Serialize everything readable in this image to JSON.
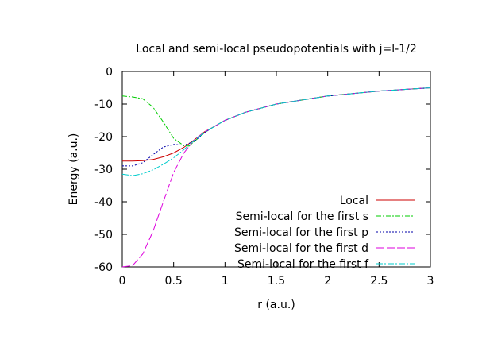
{
  "chart_data": {
    "type": "line",
    "title": "Local and semi-local pseudopotentials with j=l-1/2",
    "xlabel": "r (a.u.)",
    "ylabel": "Energy (a.u.)",
    "xlim": [
      0,
      3
    ],
    "ylim": [
      -60,
      0
    ],
    "xticks": [
      "0",
      "0.5",
      "1",
      "1.5",
      "2",
      "2.5",
      "3"
    ],
    "yticks": [
      "0",
      "-10",
      "-20",
      "-30",
      "-40",
      "-50",
      "-60"
    ],
    "grid": false,
    "legend_position": "bottom-right",
    "series": [
      {
        "name": "Local",
        "color": "#cc0000",
        "dash": "",
        "points": [
          [
            0,
            -27.5
          ],
          [
            0.1,
            -27.5
          ],
          [
            0.2,
            -27.4
          ],
          [
            0.3,
            -27.0
          ],
          [
            0.4,
            -26.2
          ],
          [
            0.5,
            -25.0
          ],
          [
            0.6,
            -23.3
          ],
          [
            0.7,
            -21.0
          ],
          [
            0.8,
            -18.5
          ],
          [
            0.9,
            -16.8
          ],
          [
            1.0,
            -15.0
          ],
          [
            1.2,
            -12.5
          ],
          [
            1.5,
            -10.0
          ],
          [
            2.0,
            -7.5
          ],
          [
            2.5,
            -6.0
          ],
          [
            3.0,
            -5.0
          ]
        ]
      },
      {
        "name": "Semi-local for the first s",
        "color": "#00cc00",
        "dash": "6,2,2,2",
        "points": [
          [
            0,
            -7.5
          ],
          [
            0.1,
            -7.8
          ],
          [
            0.2,
            -8.4
          ],
          [
            0.3,
            -11.0
          ],
          [
            0.4,
            -15.5
          ],
          [
            0.5,
            -20.5
          ],
          [
            0.6,
            -22.8
          ],
          [
            0.65,
            -22.9
          ],
          [
            0.7,
            -21.5
          ],
          [
            0.8,
            -18.8
          ],
          [
            0.9,
            -16.8
          ],
          [
            1.0,
            -15.0
          ],
          [
            1.2,
            -12.5
          ],
          [
            1.5,
            -10.0
          ],
          [
            2.0,
            -7.5
          ],
          [
            2.5,
            -6.0
          ],
          [
            3.0,
            -5.0
          ]
        ]
      },
      {
        "name": "Semi-local for the first p",
        "color": "#0000aa",
        "dash": "2,2",
        "points": [
          [
            0,
            -29.0
          ],
          [
            0.1,
            -29.0
          ],
          [
            0.2,
            -28.0
          ],
          [
            0.3,
            -25.5
          ],
          [
            0.4,
            -23.2
          ],
          [
            0.5,
            -22.4
          ],
          [
            0.6,
            -22.6
          ],
          [
            0.7,
            -21.5
          ],
          [
            0.8,
            -18.8
          ],
          [
            0.9,
            -16.8
          ],
          [
            1.0,
            -15.0
          ],
          [
            1.2,
            -12.5
          ],
          [
            1.5,
            -10.0
          ],
          [
            2.0,
            -7.5
          ],
          [
            2.5,
            -6.0
          ],
          [
            3.0,
            -5.0
          ]
        ]
      },
      {
        "name": "Semi-local for the first d",
        "color": "#dd00dd",
        "dash": "10,3",
        "points": [
          [
            0,
            -60.0
          ],
          [
            0.1,
            -59.6
          ],
          [
            0.2,
            -56.0
          ],
          [
            0.3,
            -49.0
          ],
          [
            0.4,
            -40.0
          ],
          [
            0.5,
            -31.0
          ],
          [
            0.6,
            -25.0
          ],
          [
            0.7,
            -21.0
          ],
          [
            0.8,
            -18.6
          ],
          [
            0.9,
            -16.8
          ],
          [
            1.0,
            -15.0
          ],
          [
            1.2,
            -12.5
          ],
          [
            1.5,
            -10.0
          ],
          [
            2.0,
            -7.5
          ],
          [
            2.5,
            -6.0
          ],
          [
            3.0,
            -5.0
          ]
        ]
      },
      {
        "name": "Semi-local for the first f",
        "color": "#00cccc",
        "dash": "8,2,2,2",
        "points": [
          [
            0,
            -31.5
          ],
          [
            0.1,
            -32.0
          ],
          [
            0.2,
            -31.4
          ],
          [
            0.3,
            -30.2
          ],
          [
            0.4,
            -28.5
          ],
          [
            0.5,
            -26.5
          ],
          [
            0.6,
            -24.0
          ],
          [
            0.7,
            -21.2
          ],
          [
            0.8,
            -18.7
          ],
          [
            0.9,
            -16.8
          ],
          [
            1.0,
            -15.0
          ],
          [
            1.2,
            -12.5
          ],
          [
            1.5,
            -10.0
          ],
          [
            2.0,
            -7.5
          ],
          [
            2.5,
            -6.0
          ],
          [
            3.0,
            -5.0
          ]
        ]
      }
    ]
  }
}
